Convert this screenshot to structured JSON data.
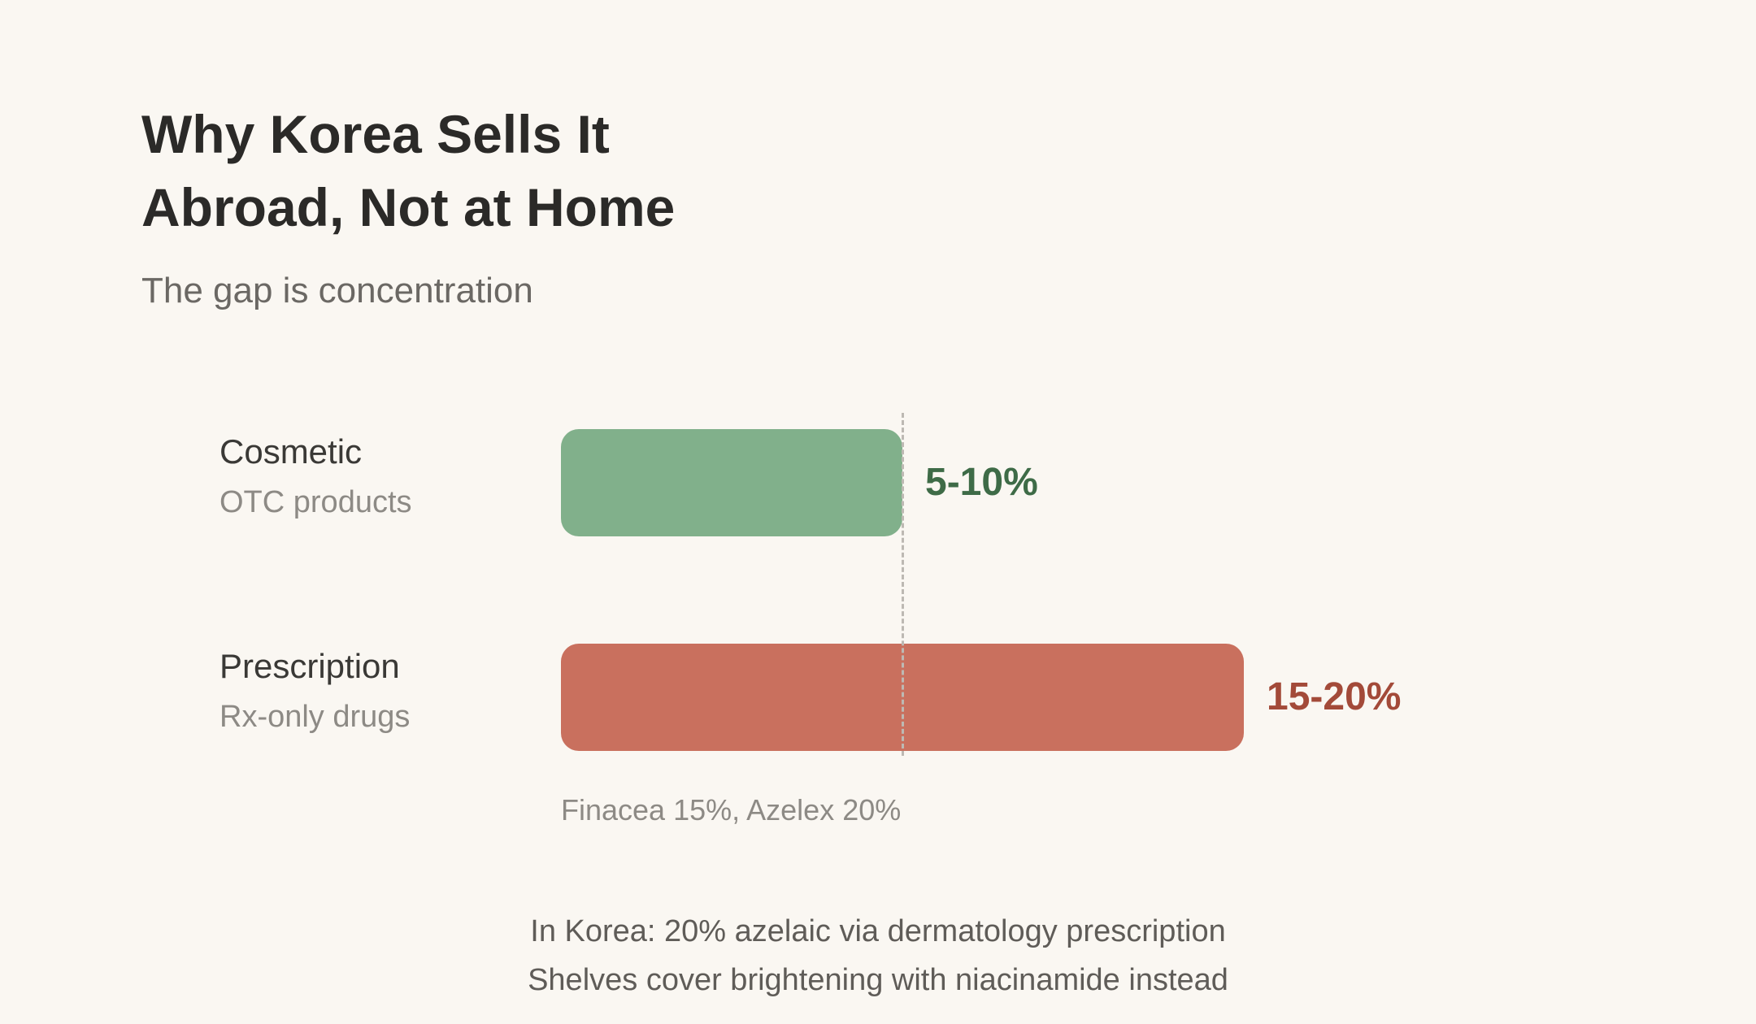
{
  "colors": {
    "background": "#faf7f2",
    "cosmetic_bar": "#81b08b",
    "cosmetic_text": "#3e6b47",
    "prescription_bar": "#c9705e",
    "prescription_text": "#a34a39",
    "reference_line": "#bdb9b3"
  },
  "chart_data": {
    "type": "bar",
    "orientation": "horizontal",
    "title": "Why Korea Sells It Abroad, Not at Home",
    "title_lines": [
      "Why Korea Sells It",
      "Abroad, Not at Home"
    ],
    "subtitle": "The gap is concentration",
    "categories": [
      "Cosmetic",
      "Prescription"
    ],
    "category_subtitles": [
      "OTC products",
      "Rx-only drugs"
    ],
    "ranges": [
      [
        5,
        10
      ],
      [
        15,
        20
      ]
    ],
    "values": [
      10,
      20
    ],
    "value_labels": [
      "5-10%",
      "15-20%"
    ],
    "reference_line": 10,
    "xlim": [
      0,
      20
    ],
    "grid": false,
    "annotation": "Finacea 15%, Azelex 20%"
  },
  "footer": {
    "line1": "In Korea: 20% azelaic via dermatology prescription",
    "line2": "Shelves cover brightening with niacinamide instead"
  }
}
